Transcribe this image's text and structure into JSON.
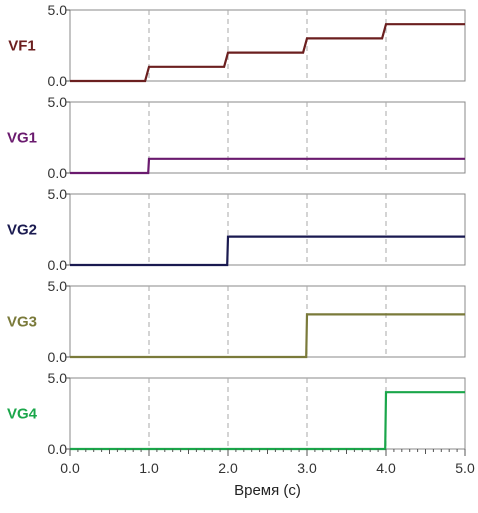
{
  "chart_data": {
    "type": "line",
    "title": "",
    "xlabel": "Время (с)",
    "xlim": [
      0,
      5
    ],
    "x_ticks": [
      "0.0",
      "1.0",
      "2.0",
      "3.0",
      "4.0",
      "5.0"
    ],
    "y_tick_labels": [
      "0.0",
      "5.0"
    ],
    "grid": "vertical dashed at x = 1, 2, 3, 4",
    "panels": [
      {
        "name": "VF1",
        "color": "#6b1f1f",
        "ylim": [
          0,
          5
        ],
        "x": [
          0,
          0.95,
          1,
          1.95,
          2,
          2.95,
          3,
          3.95,
          4,
          5
        ],
        "y": [
          0,
          0,
          1,
          1,
          2,
          2,
          3,
          3,
          4,
          4
        ]
      },
      {
        "name": "VG1",
        "color": "#6a1a6e",
        "ylim": [
          0,
          5
        ],
        "x": [
          0,
          0.99,
          1,
          5
        ],
        "y": [
          0,
          0,
          1,
          1
        ]
      },
      {
        "name": "VG2",
        "color": "#1a1a50",
        "ylim": [
          0,
          5
        ],
        "x": [
          0,
          1.99,
          2,
          5
        ],
        "y": [
          0,
          0,
          2,
          2
        ]
      },
      {
        "name": "VG3",
        "color": "#7a7a3a",
        "ylim": [
          0,
          5
        ],
        "x": [
          0,
          2.99,
          3,
          5
        ],
        "y": [
          0,
          0,
          3,
          3
        ]
      },
      {
        "name": "VG4",
        "color": "#1aa64a",
        "ylim": [
          0,
          5
        ],
        "x": [
          0,
          3.99,
          4,
          5
        ],
        "y": [
          0,
          0,
          4,
          4
        ]
      }
    ]
  }
}
